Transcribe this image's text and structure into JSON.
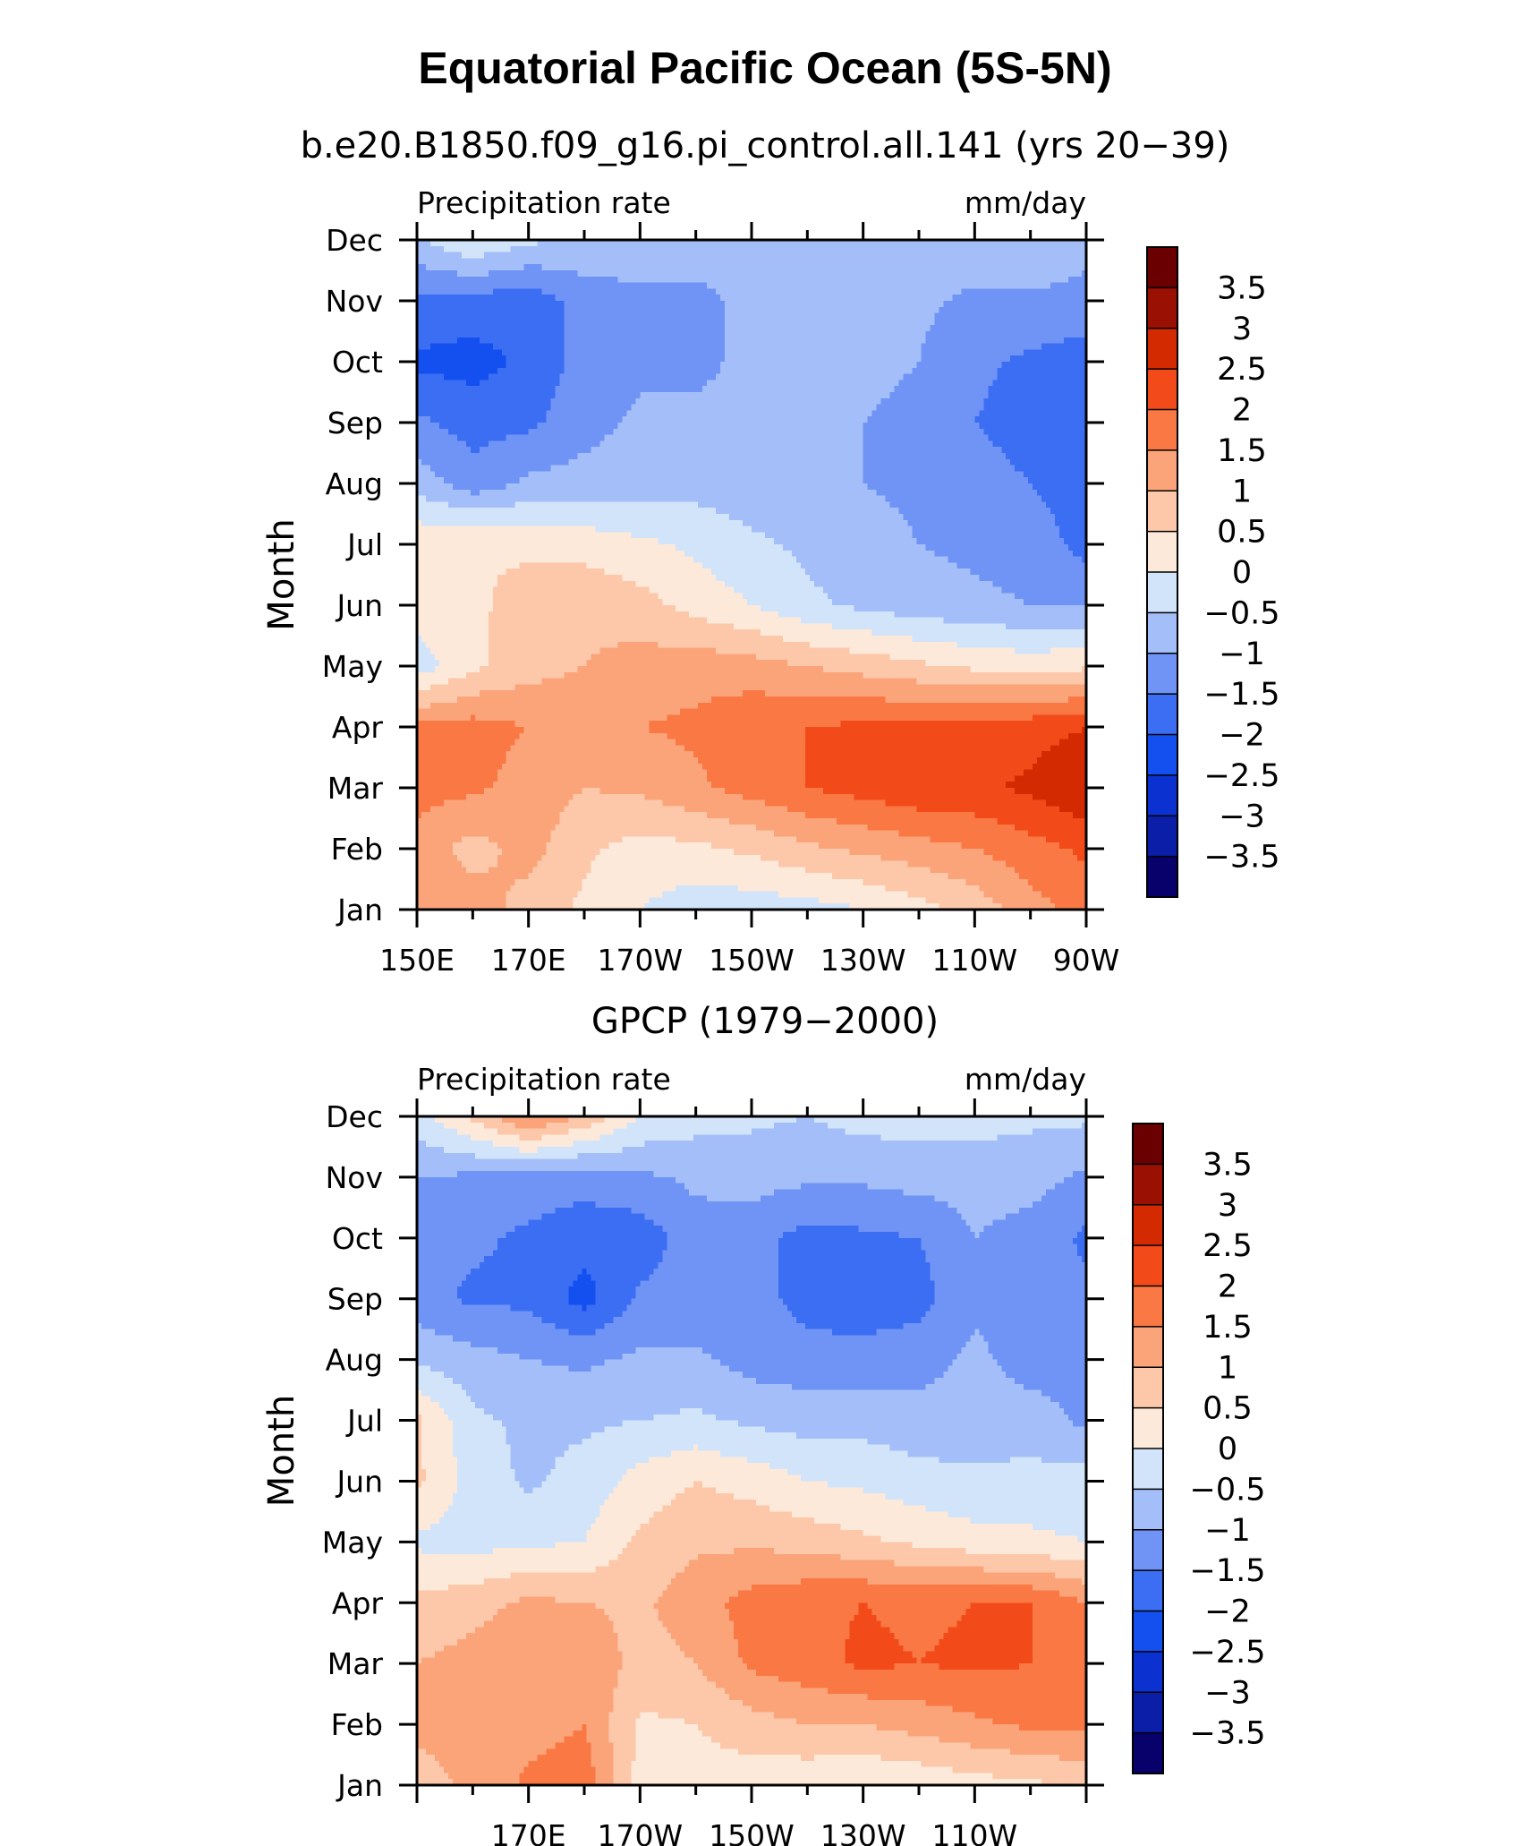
{
  "title": "Equatorial Pacific Ocean (5S-5N)",
  "contour_levels": [
    -3.5,
    -3,
    -2.5,
    -2,
    -1.5,
    -1,
    -0.5,
    0,
    0.5,
    1,
    1.5,
    2,
    2.5,
    3,
    3.5
  ],
  "colorbar": {
    "labels": [
      "3.5",
      "3",
      "2.5",
      "2",
      "1.5",
      "1",
      "0.5",
      "0",
      "−0.5",
      "−1",
      "−1.5",
      "−2",
      "−2.5",
      "−3",
      "−3.5"
    ],
    "colors": [
      "#08006b",
      "#0a1ea8",
      "#0b32d0",
      "#1450f0",
      "#3c6ef4",
      "#6f94f6",
      "#a3bef8",
      "#d2e4fa",
      "#fde9da",
      "#fcc8a9",
      "#fba47a",
      "#f97844",
      "#f24a18",
      "#d42a02",
      "#9a1002",
      "#6a0000"
    ]
  },
  "chart_data": [
    {
      "type": "heatmap",
      "title": "b.e20.B1850.f09_g16.pi_control.all.141 (yrs 20−39)",
      "left_label": "Precipitation rate",
      "right_label": "mm/day",
      "ylabel": "Month",
      "x_ticklabels": [
        "150E",
        "170E",
        "170W",
        "150W",
        "130W",
        "110W",
        "90W"
      ],
      "y_ticklabels": [
        "Jan",
        "Feb",
        "Mar",
        "Apr",
        "May",
        "Jun",
        "Jul",
        "Aug",
        "Sep",
        "Oct",
        "Nov",
        "Dec"
      ],
      "xlim": [
        150,
        270
      ],
      "x_units": "degrees east longitude",
      "x": [
        150,
        160,
        170,
        180,
        190,
        200,
        210,
        220,
        230,
        240,
        250,
        260,
        270
      ],
      "months": [
        "Jan",
        "Feb",
        "Mar",
        "Apr",
        "May",
        "Jun",
        "Jul",
        "Aug",
        "Sep",
        "Oct",
        "Nov",
        "Dec"
      ],
      "values": [
        [
          1.2,
          1.3,
          0.8,
          0.4,
          0.0,
          -0.3,
          -0.3,
          -0.2,
          0.0,
          0.3,
          0.7,
          1.3,
          1.7
        ],
        [
          1.3,
          0.8,
          1.2,
          0.6,
          0.3,
          0.4,
          0.6,
          0.9,
          1.1,
          1.3,
          1.5,
          1.8,
          2.1
        ],
        [
          1.7,
          1.6,
          1.3,
          1.0,
          1.1,
          1.4,
          1.7,
          2.0,
          2.2,
          2.4,
          2.4,
          2.6,
          3.0
        ],
        [
          1.6,
          1.7,
          1.5,
          1.4,
          1.5,
          1.6,
          1.9,
          2.0,
          2.1,
          2.2,
          2.2,
          2.3,
          2.5
        ],
        [
          -0.3,
          0.4,
          0.8,
          1.0,
          1.2,
          1.3,
          1.2,
          1.0,
          0.8,
          0.6,
          0.4,
          0.3,
          0.4
        ],
        [
          0.3,
          0.4,
          0.7,
          0.9,
          0.7,
          0.3,
          0.0,
          -0.4,
          -0.6,
          -0.8,
          -0.9,
          -1.0,
          -1.0
        ],
        [
          0.4,
          0.5,
          0.4,
          0.3,
          0.1,
          -0.1,
          -0.4,
          -0.6,
          -0.8,
          -1.0,
          -1.1,
          -1.2,
          -1.7
        ],
        [
          -0.7,
          -1.3,
          -0.9,
          -0.8,
          -0.7,
          -0.7,
          -0.8,
          -0.9,
          -1.0,
          -1.1,
          -1.3,
          -1.5,
          -1.8
        ],
        [
          -1.4,
          -1.7,
          -1.6,
          -1.2,
          -0.9,
          -0.9,
          -0.9,
          -0.9,
          -1.0,
          -1.1,
          -1.5,
          -1.7,
          -1.8
        ],
        [
          -2.1,
          -2.2,
          -1.9,
          -1.3,
          -1.1,
          -1.1,
          -0.9,
          -0.8,
          -0.9,
          -1.0,
          -1.4,
          -1.6,
          -1.8
        ],
        [
          -1.6,
          -1.7,
          -1.8,
          -1.3,
          -1.1,
          -1.1,
          -0.9,
          -0.8,
          -0.8,
          -0.9,
          -1.1,
          -1.1,
          -1.1
        ],
        [
          -0.6,
          0.0,
          -0.4,
          -0.6,
          -0.7,
          -0.8,
          -0.8,
          -0.7,
          -0.8,
          -0.8,
          -0.7,
          -0.6,
          -0.9
        ]
      ]
    },
    {
      "type": "heatmap",
      "title": "GPCP (1979−2000)",
      "left_label": "Precipitation rate",
      "right_label": "mm/day",
      "ylabel": "Month",
      "x_ticklabels": [
        "170E",
        "170W",
        "150W",
        "130W",
        "110W"
      ],
      "y_ticklabels": [
        "Jan",
        "Feb",
        "Mar",
        "Apr",
        "May",
        "Jun",
        "Jul",
        "Aug",
        "Sep",
        "Oct",
        "Nov",
        "Dec"
      ],
      "xlim": [
        150,
        270
      ],
      "x_units": "degrees east longitude",
      "x": [
        150,
        160,
        170,
        180,
        190,
        200,
        210,
        220,
        230,
        240,
        250,
        260,
        270
      ],
      "months": [
        "Jan",
        "Feb",
        "Mar",
        "Apr",
        "May",
        "Jun",
        "Jul",
        "Aug",
        "Sep",
        "Oct",
        "Nov",
        "Dec"
      ],
      "values": [
        [
          0.8,
          1.1,
          1.6,
          1.8,
          0.3,
          0.3,
          0.2,
          0.1,
          0.0,
          0.1,
          0.3,
          0.4,
          0.6
        ],
        [
          1.1,
          1.2,
          1.3,
          1.5,
          0.4,
          0.5,
          0.8,
          1.0,
          1.0,
          1.2,
          1.4,
          1.6,
          1.6
        ],
        [
          1.0,
          1.2,
          1.5,
          1.4,
          0.8,
          1.0,
          1.6,
          1.8,
          2.1,
          2.0,
          2.1,
          2.0,
          1.6
        ],
        [
          0.6,
          0.8,
          1.1,
          1.0,
          0.9,
          1.3,
          1.7,
          1.9,
          2.0,
          1.9,
          2.0,
          2.0,
          1.5
        ],
        [
          -0.1,
          -0.2,
          -0.1,
          0.0,
          0.6,
          0.9,
          0.9,
          0.8,
          0.6,
          0.4,
          0.2,
          0.1,
          0.0
        ],
        [
          0.6,
          -0.2,
          -0.6,
          -0.3,
          0.2,
          0.5,
          0.3,
          0.0,
          -0.1,
          -0.3,
          -0.4,
          -0.3,
          -0.3
        ],
        [
          0.6,
          -0.4,
          -0.6,
          -0.6,
          -0.5,
          -0.4,
          -0.6,
          -0.7,
          -0.7,
          -0.8,
          -0.8,
          -0.8,
          -1.1
        ],
        [
          -0.6,
          -0.8,
          -1.0,
          -1.1,
          -0.9,
          -0.9,
          -1.2,
          -1.3,
          -1.3,
          -1.2,
          -0.9,
          -1.2,
          -1.1
        ],
        [
          -1.3,
          -1.6,
          -1.6,
          -2.2,
          -1.4,
          -1.3,
          -1.3,
          -1.7,
          -1.8,
          -1.7,
          -1.1,
          -1.1,
          -1.4
        ],
        [
          -1.4,
          -1.4,
          -1.6,
          -1.8,
          -1.8,
          -1.2,
          -1.3,
          -1.7,
          -1.6,
          -1.5,
          -1.0,
          -1.2,
          -1.6
        ],
        [
          -1.0,
          -1.1,
          -1.2,
          -1.3,
          -1.1,
          -0.9,
          -0.8,
          -0.9,
          -0.9,
          -0.8,
          -0.8,
          -0.8,
          -1.1
        ],
        [
          -0.2,
          0.6,
          1.6,
          0.9,
          0.0,
          -0.3,
          -0.4,
          -0.5,
          -0.3,
          -0.3,
          -0.3,
          -0.4,
          -0.4
        ]
      ]
    }
  ]
}
